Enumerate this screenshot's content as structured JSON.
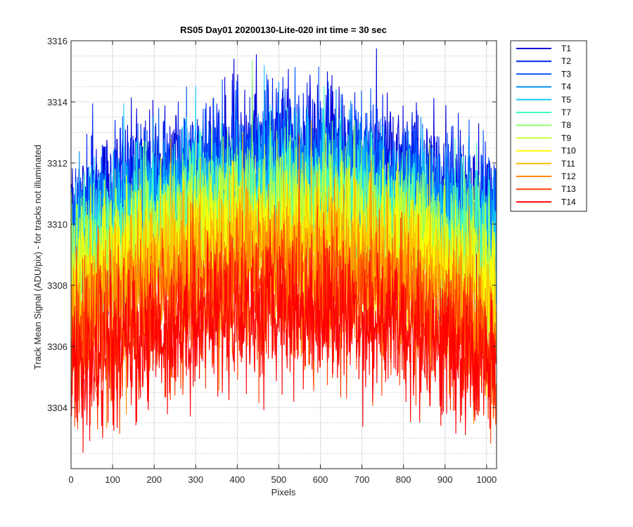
{
  "chart_data": {
    "type": "line",
    "title": "RS05 Day01 20200130-Lite-020 int time = 30 sec",
    "xlabel": "Pixels",
    "ylabel": "Track Mean Signal (ADU/pix) - for tracks not illuminated",
    "xlim": [
      0,
      1024
    ],
    "ylim": [
      3302,
      3316
    ],
    "x_ticks": [
      0,
      100,
      200,
      300,
      400,
      500,
      600,
      700,
      800,
      900,
      1000
    ],
    "y_ticks": [
      3304,
      3306,
      3308,
      3310,
      3312,
      3314,
      3316
    ],
    "x_tick_labels": [
      "0",
      "100",
      "200",
      "300",
      "400",
      "500",
      "600",
      "700",
      "800",
      "900",
      "1000"
    ],
    "y_tick_labels": [
      "3304",
      "3306",
      "3308",
      "3310",
      "3312",
      "3314",
      "3316"
    ],
    "grid": true,
    "minor_grid": true,
    "legend_position": "outside-top-right",
    "n_points": 1024,
    "series": [
      {
        "name": "T1",
        "color": "#0000d6",
        "edge_mean": 3310.2,
        "center_mean": 3312.4,
        "noise": 1.15
      },
      {
        "name": "T2",
        "color": "#0022ee",
        "edge_mean": 3309.9,
        "center_mean": 3312.1,
        "noise": 1.15
      },
      {
        "name": "T3",
        "color": "#0055ff",
        "edge_mean": 3309.6,
        "center_mean": 3311.8,
        "noise": 1.15
      },
      {
        "name": "T4",
        "color": "#0090ff",
        "edge_mean": 3309.2,
        "center_mean": 3311.4,
        "noise": 1.15
      },
      {
        "name": "T5",
        "color": "#15c8ff",
        "edge_mean": 3308.9,
        "center_mean": 3311.1,
        "noise": 1.15
      },
      {
        "name": "T7",
        "color": "#40ffc0",
        "edge_mean": 3308.6,
        "center_mean": 3310.8,
        "noise": 1.15
      },
      {
        "name": "T8",
        "color": "#8cff70",
        "edge_mean": 3308.3,
        "center_mean": 3310.5,
        "noise": 1.15
      },
      {
        "name": "T9",
        "color": "#c8ff30",
        "edge_mean": 3308.0,
        "center_mean": 3310.2,
        "noise": 1.15
      },
      {
        "name": "T10",
        "color": "#ffff00",
        "edge_mean": 3307.6,
        "center_mean": 3309.8,
        "noise": 1.15
      },
      {
        "name": "T11",
        "color": "#ffc000",
        "edge_mean": 3307.1,
        "center_mean": 3309.3,
        "noise": 1.15
      },
      {
        "name": "T12",
        "color": "#ff8800",
        "edge_mean": 3306.3,
        "center_mean": 3308.5,
        "noise": 1.2
      },
      {
        "name": "T13",
        "color": "#ff4000",
        "edge_mean": 3305.6,
        "center_mean": 3307.8,
        "noise": 1.2
      },
      {
        "name": "T14",
        "color": "#ff0000",
        "edge_mean": 3305.0,
        "center_mean": 3307.2,
        "noise": 1.2
      }
    ]
  }
}
